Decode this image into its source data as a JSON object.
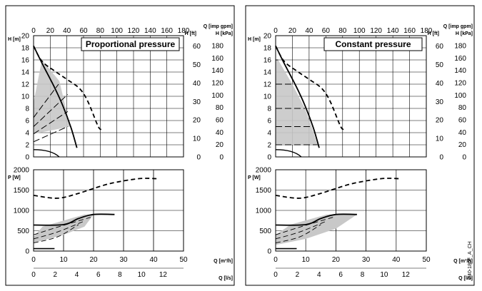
{
  "chart_data": [
    {
      "type": "line",
      "title": "Proportional pressure",
      "code": "D40-180F_A_CH",
      "top": {
        "q_imp": {
          "label": "Q [imp gpm]",
          "ticks": [
            0,
            20,
            40,
            60,
            80,
            100,
            120,
            140,
            160,
            180
          ],
          "max": 180
        },
        "h_m": {
          "label": "H [m]",
          "ticks": [
            0,
            2,
            4,
            6,
            8,
            10,
            12,
            14,
            16,
            18,
            20
          ],
          "max": 20
        },
        "h_ft": {
          "label": "H [ft]",
          "ticks": [
            0,
            10,
            20,
            30,
            40,
            50,
            60
          ],
          "max_m": 20
        },
        "h_kpa": {
          "label": "H [kPa]",
          "ticks": [
            0,
            20,
            40,
            60,
            80,
            100,
            120,
            140,
            160,
            180
          ],
          "max_m": 20
        },
        "pump_curve_max": [
          [
            0,
            18.3
          ],
          [
            10,
            15.5
          ],
          [
            25,
            11.5
          ],
          [
            35,
            8.5
          ],
          [
            45,
            4.8
          ],
          [
            52,
            1.5
          ]
        ],
        "pump_curve_wide": [
          [
            0,
            18.3
          ],
          [
            10,
            15.8
          ],
          [
            25,
            14.2
          ],
          [
            40,
            12.8
          ],
          [
            55,
            11.3
          ],
          [
            65,
            9.2
          ],
          [
            77,
            5.2
          ],
          [
            81,
            4.5
          ]
        ],
        "lines_dashed": [
          [
            [
              0,
              6.5
            ],
            [
              30,
              12.0
            ]
          ],
          [
            [
              0,
              5.0
            ],
            [
              41,
              10.3
            ]
          ],
          [
            [
              0,
              3.8
            ],
            [
              41,
              7.5
            ]
          ],
          [
            [
              0,
              2.5
            ],
            [
              41,
              5.0
            ]
          ]
        ],
        "region": [
          [
            0,
            9
          ],
          [
            10,
            16
          ],
          [
            31,
            12.5
          ],
          [
            44,
            5
          ],
          [
            0,
            3.8
          ]
        ]
      },
      "bottom": {
        "p_w": {
          "label": "P [W]",
          "ticks": [
            0,
            500,
            1000,
            1500,
            2000
          ],
          "max": 2000
        },
        "q_m3h": {
          "label": "Q [m³/h]",
          "ticks": [
            0,
            10,
            20,
            30,
            40,
            50
          ],
          "max": 50
        },
        "q_ls": {
          "label": "Q [l/s]",
          "ticks": [
            0,
            2,
            4,
            6,
            8,
            10,
            12
          ],
          "max_m3h": 50
        },
        "power_wide": [
          [
            0,
            1370
          ],
          [
            8,
            1300
          ],
          [
            15,
            1420
          ],
          [
            25,
            1650
          ],
          [
            35,
            1780
          ],
          [
            41,
            1780
          ]
        ],
        "power_max": [
          [
            0,
            640
          ],
          [
            10,
            650
          ],
          [
            15,
            800
          ],
          [
            20,
            900
          ],
          [
            27,
            900
          ]
        ],
        "region": [
          [
            0,
            350
          ],
          [
            3,
            600
          ],
          [
            17,
            900
          ],
          [
            20,
            900
          ],
          [
            17,
            600
          ],
          [
            10,
            400
          ],
          [
            0,
            200
          ]
        ]
      }
    },
    {
      "type": "line",
      "title": "Constant pressure",
      "code": "D40-180F_A_CH",
      "top": {
        "q_imp": {
          "label": "Q [imp gpm]",
          "ticks": [
            0,
            20,
            40,
            60,
            80,
            100,
            120,
            140,
            160,
            180
          ],
          "max": 180
        },
        "h_m": {
          "label": "H [m]",
          "ticks": [
            0,
            2,
            4,
            6,
            8,
            10,
            12,
            14,
            16,
            18,
            20
          ],
          "max": 20
        },
        "h_ft": {
          "label": "H [ft]",
          "ticks": [
            0,
            10,
            20,
            30,
            40,
            50,
            60
          ],
          "max_m": 20
        },
        "h_kpa": {
          "label": "H [kPa]",
          "ticks": [
            0,
            20,
            40,
            60,
            80,
            100,
            120,
            140,
            160,
            180
          ],
          "max_m": 20
        },
        "pump_curve_max": [
          [
            0,
            18.3
          ],
          [
            10,
            15.5
          ],
          [
            25,
            11.5
          ],
          [
            35,
            8.5
          ],
          [
            45,
            4.8
          ],
          [
            52,
            1.5
          ]
        ],
        "pump_curve_wide": [
          [
            0,
            18.3
          ],
          [
            10,
            15.8
          ],
          [
            25,
            14.2
          ],
          [
            40,
            12.8
          ],
          [
            55,
            11.3
          ],
          [
            65,
            9.2
          ],
          [
            77,
            5.2
          ],
          [
            81,
            4.5
          ]
        ],
        "lines_dashed": [
          [
            [
              0,
              16.0
            ],
            [
              3,
              16.0
            ]
          ],
          [
            [
              0,
              12.0
            ],
            [
              20,
              12.0
            ]
          ],
          [
            [
              0,
              8.0
            ],
            [
              35,
              8.0
            ]
          ],
          [
            [
              0,
              5.0
            ],
            [
              43,
              5.0
            ]
          ],
          [
            [
              0,
              2.0
            ],
            [
              50,
              2.0
            ]
          ]
        ],
        "region": [
          [
            0,
            16
          ],
          [
            3,
            16
          ],
          [
            20,
            12
          ],
          [
            35,
            8
          ],
          [
            43,
            5
          ],
          [
            50,
            2
          ],
          [
            0,
            2
          ]
        ]
      },
      "bottom": {
        "p_w": {
          "label": "P [W]",
          "ticks": [
            0,
            500,
            1000,
            1500,
            2000
          ],
          "max": 2000
        },
        "q_m3h": {
          "label": "Q [m³/h]",
          "ticks": [
            0,
            10,
            20,
            30,
            40,
            50
          ],
          "max": 50
        },
        "q_ls": {
          "label": "Q [l/s]",
          "ticks": [
            0,
            2,
            4,
            6,
            8,
            10,
            12
          ],
          "max_m3h": 50
        },
        "power_wide": [
          [
            0,
            1370
          ],
          [
            8,
            1300
          ],
          [
            15,
            1420
          ],
          [
            25,
            1650
          ],
          [
            35,
            1780
          ],
          [
            41,
            1780
          ]
        ],
        "power_max": [
          [
            0,
            640
          ],
          [
            10,
            650
          ],
          [
            15,
            800
          ],
          [
            20,
            900
          ],
          [
            27,
            900
          ]
        ],
        "region": [
          [
            0,
            400
          ],
          [
            5,
            650
          ],
          [
            17,
            900
          ],
          [
            27,
            900
          ],
          [
            20,
            550
          ],
          [
            10,
            300
          ],
          [
            0,
            150
          ]
        ]
      }
    }
  ]
}
